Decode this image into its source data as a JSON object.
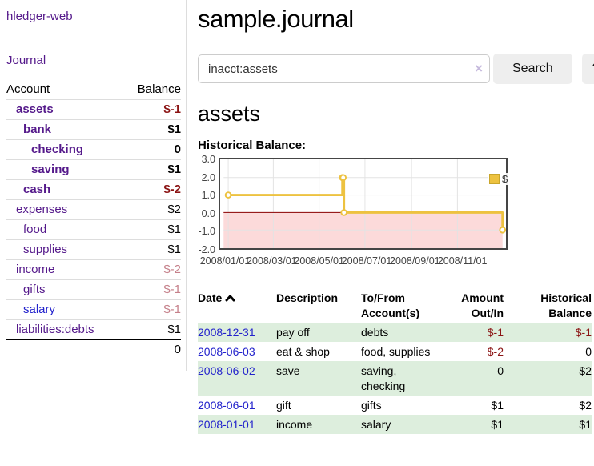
{
  "sidebar": {
    "app_title": "hledger-web",
    "journal_link": "Journal",
    "accounts": {
      "header": {
        "account": "Account",
        "balance": "Balance"
      },
      "rows": [
        {
          "name": "assets",
          "balance": "$-1",
          "level": 1,
          "bold": true
        },
        {
          "name": "bank",
          "balance": "$1",
          "level": 2,
          "bold": true
        },
        {
          "name": "checking",
          "balance": "0",
          "level": 3,
          "bold": true
        },
        {
          "name": "saving",
          "balance": "$1",
          "level": 3,
          "bold": true
        },
        {
          "name": "cash",
          "balance": "$-2",
          "level": 2,
          "bold": true
        },
        {
          "name": "expenses",
          "balance": "$2",
          "level": 1,
          "bold": false
        },
        {
          "name": "food",
          "balance": "$1",
          "level": 2,
          "bold": false
        },
        {
          "name": "supplies",
          "balance": "$1",
          "level": 2,
          "bold": false
        },
        {
          "name": "income",
          "balance": "$-2",
          "level": 1,
          "bold": false
        },
        {
          "name": "gifts",
          "balance": "$-1",
          "level": 2,
          "bold": false
        },
        {
          "name": "salary",
          "balance": "$-1",
          "level": 2,
          "bold": false,
          "link_color": "blue"
        },
        {
          "name": "liabilities:debts",
          "balance": "$1",
          "level": 1,
          "bold": false
        }
      ],
      "total": "0"
    }
  },
  "main": {
    "title": "sample.journal",
    "search": {
      "value": "inacct:assets",
      "clear_icon": "×",
      "search_button": "Search",
      "help_button": "?"
    },
    "account_heading": "assets",
    "chart_heading": "Historical Balance:"
  },
  "chart_data": {
    "type": "line",
    "step": true,
    "title": "Historical Balance",
    "series": [
      {
        "name": "$",
        "color": "#edc240",
        "points": [
          [
            "2008-01-01",
            1
          ],
          [
            "2008-06-01",
            2
          ],
          [
            "2008-06-02",
            2
          ],
          [
            "2008-06-03",
            0
          ],
          [
            "2008-12-31",
            -1
          ]
        ]
      }
    ],
    "x_range": [
      "2008-01-01",
      "2008-12-31"
    ],
    "ylim": [
      -2,
      3
    ],
    "y_ticks": [
      {
        "v": 3,
        "label": "3.0"
      },
      {
        "v": 2,
        "label": "2.0"
      },
      {
        "v": 1,
        "label": "1.0"
      },
      {
        "v": 0,
        "label": "0.0"
      },
      {
        "v": -1,
        "label": "-1.0"
      },
      {
        "v": -2,
        "label": "-2.0"
      }
    ],
    "x_ticks": [
      {
        "d": "2008-01-01",
        "label": "2008/01/01"
      },
      {
        "d": "2008-03-01",
        "label": "2008/03/01"
      },
      {
        "d": "2008-05-01",
        "label": "2008/05/01"
      },
      {
        "d": "2008-07-01",
        "label": "2008/07/01"
      },
      {
        "d": "2008-09-01",
        "label": "2008/09/01"
      },
      {
        "d": "2008-11-01",
        "label": "2008/11/01"
      }
    ],
    "legend": {
      "label": "$",
      "position": "top-right"
    },
    "grid": true,
    "negative_region": true
  },
  "register": {
    "headers": {
      "date": "Date",
      "description": "Description",
      "accounts": "To/From Account(s)",
      "amount": "Amount Out/In",
      "balance": "Historical Balance"
    },
    "rows": [
      {
        "date": "2008-12-31",
        "description": "pay off",
        "accounts": "debts",
        "amount": "$-1",
        "balance": "$-1"
      },
      {
        "date": "2008-06-03",
        "description": "eat & shop",
        "accounts": "food, supplies",
        "amount": "$-2",
        "balance": "0"
      },
      {
        "date": "2008-06-02",
        "description": "save",
        "accounts": "saving, checking",
        "amount": "0",
        "balance": "$2"
      },
      {
        "date": "2008-06-01",
        "description": "gift",
        "accounts": "gifts",
        "amount": "$1",
        "balance": "$2"
      },
      {
        "date": "2008-01-01",
        "description": "income",
        "accounts": "salary",
        "amount": "$1",
        "balance": "$1"
      }
    ]
  },
  "colors": {
    "link_purple": "#551a8b",
    "link_blue": "#2222cc",
    "negative_strong": "#8b1414",
    "negative_soft": "#c5808a",
    "row_stripe_green": "#ddeedd",
    "chart_line": "#edc240",
    "chart_negative_fill": "#fcdada",
    "chart_zero_line": "#8b0000",
    "chart_grid": "#e3e3e3",
    "chart_border": "#454545"
  }
}
